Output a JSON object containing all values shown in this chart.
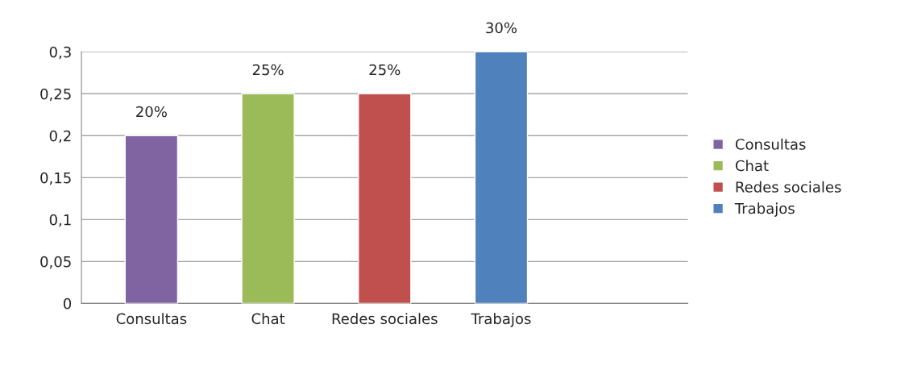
{
  "chart_data": {
    "type": "bar",
    "categories": [
      "Consultas",
      "Chat",
      "Redes sociales",
      "Trabajos"
    ],
    "series": [
      {
        "name": "Consultas",
        "color": "#8064a2",
        "values": [
          0.2,
          null,
          null,
          null
        ],
        "value_labels": [
          "20%",
          null,
          null,
          null
        ]
      },
      {
        "name": "Chat",
        "color": "#9bbb59",
        "values": [
          null,
          0.25,
          null,
          null
        ],
        "value_labels": [
          null,
          "25%",
          null,
          null
        ]
      },
      {
        "name": "Redes sociales",
        "color": "#c0504d",
        "values": [
          null,
          null,
          0.25,
          null
        ],
        "value_labels": [
          null,
          null,
          "25%",
          null
        ]
      },
      {
        "name": "Trabajos",
        "color": "#4f81bd",
        "values": [
          null,
          null,
          null,
          0.3
        ],
        "value_labels": [
          null,
          null,
          null,
          "30%"
        ]
      }
    ],
    "ylim": [
      0,
      0.3
    ],
    "yticks": [
      0,
      {
        "value": 0.05,
        "label": "0,05"
      },
      {
        "value": 0.1,
        "label": "0,1"
      },
      {
        "value": 0.15,
        "label": "0,15"
      },
      {
        "value": 0.2,
        "label": "0,2"
      },
      {
        "value": 0.25,
        "label": "0,25"
      },
      {
        "value": 0.3,
        "label": "0,3"
      }
    ],
    "grid": "y",
    "legend": "right"
  }
}
